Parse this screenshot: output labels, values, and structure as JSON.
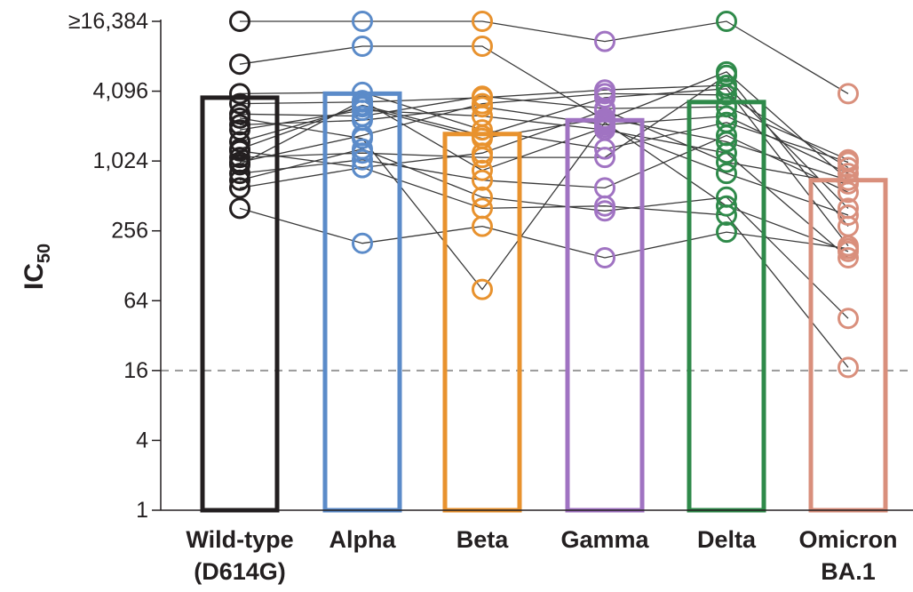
{
  "chart_data": {
    "type": "bar",
    "ylabel": "IC",
    "ylabel_subscript": "50",
    "y_scale": "log2",
    "ylim": [
      1,
      16384
    ],
    "yticks": [
      {
        "value": 1,
        "label": "1"
      },
      {
        "value": 4,
        "label": "4"
      },
      {
        "value": 16,
        "label": "16"
      },
      {
        "value": 64,
        "label": "64"
      },
      {
        "value": 256,
        "label": "256"
      },
      {
        "value": 1024,
        "label": "1,024"
      },
      {
        "value": 4096,
        "label": "4,096"
      },
      {
        "value": 16384,
        "label": "≥16,384"
      }
    ],
    "threshold_line": 16,
    "categories": [
      {
        "label1": "Wild-type",
        "label2": "(D614G)",
        "color": "#231f20"
      },
      {
        "label1": "Alpha",
        "label2": "",
        "color": "#5b8bc9"
      },
      {
        "label1": "Beta",
        "label2": "",
        "color": "#e8922e"
      },
      {
        "label1": "Gamma",
        "label2": "",
        "color": "#a073c2"
      },
      {
        "label1": "Delta",
        "label2": "",
        "color": "#2f8a4a"
      },
      {
        "label1": "Omicron",
        "label2": "BA.1",
        "color": "#d98f7c"
      }
    ],
    "bar_values": [
      3600,
      3900,
      1750,
      2300,
      3300,
      700
    ],
    "samples": [
      [
        16384,
        16384,
        16384,
        11000,
        16384,
        3900
      ],
      [
        7000,
        10000,
        10000,
        2300,
        6000,
        700
      ],
      [
        3900,
        4000,
        1900,
        1300,
        2200,
        1000
      ],
      [
        3200,
        3300,
        3600,
        4200,
        4600,
        400
      ],
      [
        2600,
        2500,
        3700,
        2900,
        3000,
        1050
      ],
      [
        2100,
        2300,
        3000,
        2100,
        2500,
        800
      ],
      [
        1900,
        2800,
        2500,
        1900,
        1200,
        150
      ],
      [
        1500,
        3000,
        1600,
        2400,
        1500,
        700
      ],
      [
        1300,
        3100,
        1700,
        3600,
        4300,
        190
      ],
      [
        1100,
        1200,
        1100,
        1100,
        5600,
        280
      ],
      [
        950,
        3400,
        850,
        2000,
        800,
        350
      ],
      [
        800,
        1050,
        700,
        600,
        1700,
        550
      ],
      [
        700,
        1300,
        500,
        380,
        500,
        45
      ],
      [
        600,
        900,
        400,
        420,
        350,
        17
      ],
      [
        400,
        200,
        280,
        150,
        250,
        180
      ],
      [
        1000,
        1700,
        3200,
        3900,
        3800,
        900
      ],
      [
        1250,
        900,
        1200,
        2800,
        1000,
        650
      ],
      [
        2400,
        1600,
        80,
        2200,
        420,
        170
      ]
    ]
  }
}
